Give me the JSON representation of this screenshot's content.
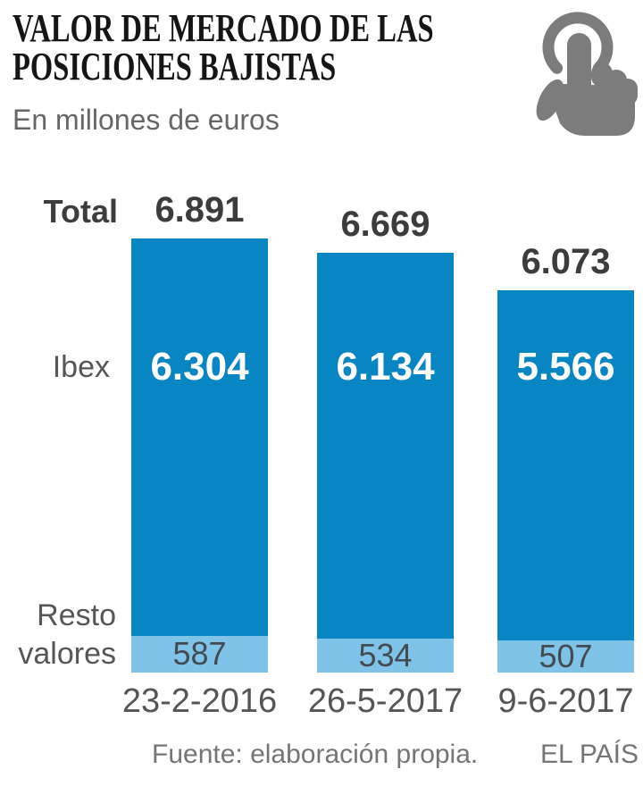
{
  "header": {
    "title_line1": "VALOR DE MERCADO DE LAS",
    "title_line2": "POSICIONES BAJISTAS",
    "subtitle": "En millones de euros",
    "tap_icon": "tap-gesture-icon"
  },
  "chart_data": {
    "type": "bar",
    "stacked": true,
    "title": "Valor de mercado de las posiciones bajistas",
    "unit": "millones de euros",
    "categories": [
      "23-2-2016",
      "26-5-2017",
      "9-6-2017"
    ],
    "series": [
      {
        "name": "Ibex",
        "values": [
          6304,
          6134,
          5566
        ],
        "labels": [
          "6.304",
          "6.134",
          "5.566"
        ],
        "color": "#0886c4"
      },
      {
        "name": "Resto valores",
        "values": [
          587,
          534,
          507
        ],
        "labels": [
          "587",
          "534",
          "507"
        ],
        "color": "#7fc3e8"
      }
    ],
    "totals": {
      "label": "Total",
      "values": [
        6891,
        6669,
        6073
      ],
      "labels": [
        "6.891",
        "6.669",
        "6.073"
      ]
    },
    "row_labels": {
      "total": "Total",
      "ibex": "Ibex",
      "resto_line1": "Resto",
      "resto_line2": "valores"
    },
    "legend_position": "row-labels-left",
    "grid": false,
    "ylim": [
      0,
      6891
    ]
  },
  "footer": {
    "source": "Fuente: elaboración propia.",
    "brand": "EL PAÍS"
  },
  "colors": {
    "ibex_bar": "#0886c4",
    "resto_bar": "#7fc3e8",
    "title_text": "#151515",
    "subtitle_text": "#666666",
    "total_text": "#3c3c3c",
    "axis_text": "#555555",
    "footer_text": "#757575",
    "icon_gray": "#7c7c7c",
    "value_on_bar": "#ffffff",
    "value_on_light": "#434b52"
  }
}
